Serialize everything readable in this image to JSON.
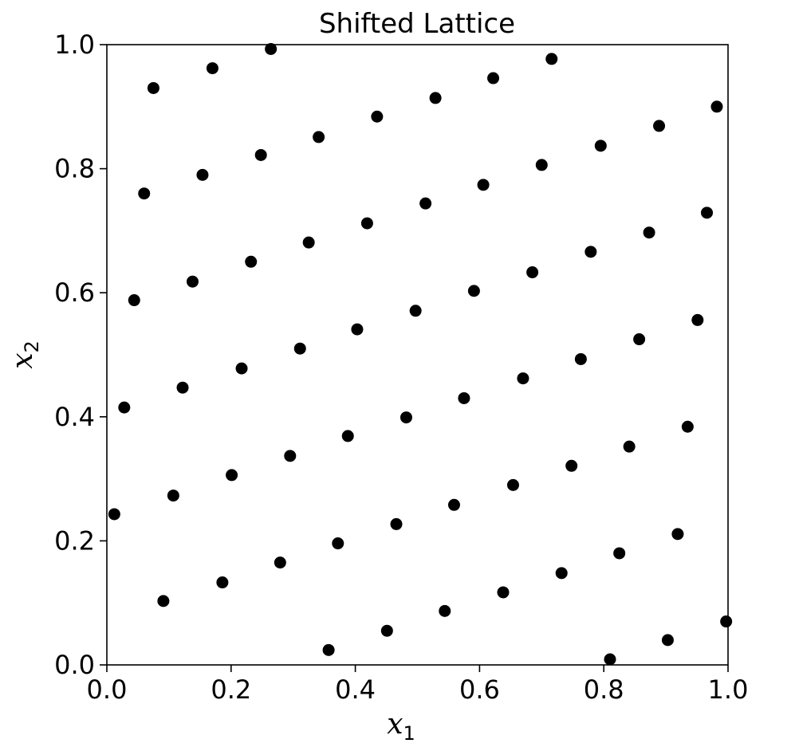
{
  "chart_data": {
    "type": "scatter",
    "title": "Shifted Lattice",
    "xlabel": "x",
    "xlabel_sub": "1",
    "ylabel": "x",
    "ylabel_sub": "2",
    "xlim": [
      0.0,
      1.0
    ],
    "ylim": [
      0.0,
      1.0
    ],
    "xticks": [
      "0.0",
      "0.2",
      "0.4",
      "0.6",
      "0.8",
      "1.0"
    ],
    "yticks": [
      "0.0",
      "0.2",
      "0.4",
      "0.6",
      "0.8",
      "1.0"
    ],
    "grid": false,
    "marker_color": "#000000",
    "points": [
      [
        0.012,
        0.243
      ],
      [
        0.028,
        0.415
      ],
      [
        0.044,
        0.588
      ],
      [
        0.06,
        0.76
      ],
      [
        0.075,
        0.93
      ],
      [
        0.091,
        0.103
      ],
      [
        0.107,
        0.273
      ],
      [
        0.122,
        0.447
      ],
      [
        0.138,
        0.618
      ],
      [
        0.154,
        0.79
      ],
      [
        0.17,
        0.962
      ],
      [
        0.186,
        0.133
      ],
      [
        0.201,
        0.306
      ],
      [
        0.217,
        0.478
      ],
      [
        0.232,
        0.65
      ],
      [
        0.248,
        0.822
      ],
      [
        0.264,
        0.993
      ],
      [
        0.279,
        0.165
      ],
      [
        0.295,
        0.337
      ],
      [
        0.311,
        0.51
      ],
      [
        0.325,
        0.681
      ],
      [
        0.341,
        0.851
      ],
      [
        0.357,
        0.024
      ],
      [
        0.372,
        0.196
      ],
      [
        0.388,
        0.369
      ],
      [
        0.403,
        0.541
      ],
      [
        0.419,
        0.712
      ],
      [
        0.435,
        0.884
      ],
      [
        0.451,
        0.055
      ],
      [
        0.466,
        0.227
      ],
      [
        0.482,
        0.399
      ],
      [
        0.497,
        0.571
      ],
      [
        0.513,
        0.744
      ],
      [
        0.529,
        0.914
      ],
      [
        0.544,
        0.087
      ],
      [
        0.559,
        0.258
      ],
      [
        0.575,
        0.43
      ],
      [
        0.591,
        0.603
      ],
      [
        0.606,
        0.774
      ],
      [
        0.622,
        0.946
      ],
      [
        0.638,
        0.117
      ],
      [
        0.654,
        0.29
      ],
      [
        0.67,
        0.462
      ],
      [
        0.685,
        0.633
      ],
      [
        0.7,
        0.806
      ],
      [
        0.716,
        0.977
      ],
      [
        0.732,
        0.148
      ],
      [
        0.748,
        0.321
      ],
      [
        0.763,
        0.493
      ],
      [
        0.779,
        0.666
      ],
      [
        0.795,
        0.837
      ],
      [
        0.81,
        0.009
      ],
      [
        0.825,
        0.18
      ],
      [
        0.841,
        0.352
      ],
      [
        0.857,
        0.525
      ],
      [
        0.873,
        0.697
      ],
      [
        0.889,
        0.869
      ],
      [
        0.903,
        0.04
      ],
      [
        0.919,
        0.211
      ],
      [
        0.935,
        0.384
      ],
      [
        0.951,
        0.556
      ],
      [
        0.966,
        0.729
      ],
      [
        0.982,
        0.9
      ],
      [
        0.997,
        0.07
      ]
    ]
  }
}
